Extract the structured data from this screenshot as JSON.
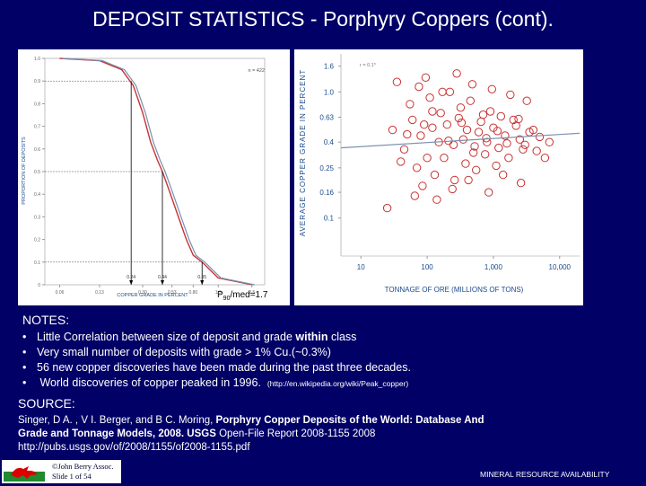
{
  "title": "DEPOSIT STATISTICS - Porphyry Coppers (cont).",
  "left_chart": {
    "ylabel": "PROPORTION OF DEPOSITS",
    "xlabel": "COPPER GRADE IN PERCENT",
    "n_label": "n = 422",
    "y_ticks": [
      "1.0",
      "0.9",
      "0.8",
      "0.7",
      "0.6",
      "0.5",
      "0.4",
      "0.3",
      "0.2",
      "0.1",
      "0"
    ],
    "x_ticks": [
      "0.06",
      "0.13",
      "0.30",
      "0.53",
      "0.80",
      "1.3",
      "2.5"
    ],
    "marker_labels": [
      "0.24",
      "0.44",
      "0.95"
    ],
    "annotation": "P90/med=1.7",
    "annotation_main": "P",
    "annotation_sub": "90",
    "annotation_rest": "/med=1.7"
  },
  "right_chart": {
    "ylabel": "AVERAGE COPPER GRADE IN PERCENT",
    "xlabel": "TONNAGE OF ORE (MILLIONS OF TONS)",
    "r_label": "r = 0.1*",
    "y_ticks": [
      "1.6",
      "1.0",
      "0.63",
      "0.4",
      "0.25",
      "0.16",
      "0.1"
    ],
    "x_ticks": [
      "10",
      "100",
      "1,000",
      "10,000"
    ]
  },
  "chart_data": [
    {
      "type": "line",
      "title": "",
      "xlabel": "COPPER GRADE IN PERCENT",
      "ylabel": "PROPORTION OF DEPOSITS",
      "x_scale": "log",
      "ylim": [
        0,
        1
      ],
      "n": 422,
      "series": [
        {
          "x": [
            0.06,
            0.13,
            0.2,
            0.25,
            0.3,
            0.35,
            0.4,
            0.44,
            0.5,
            0.6,
            0.7,
            0.8,
            0.95,
            1.3,
            2.5
          ],
          "values": [
            1.0,
            0.99,
            0.95,
            0.88,
            0.76,
            0.63,
            0.55,
            0.5,
            0.42,
            0.3,
            0.2,
            0.13,
            0.1,
            0.03,
            0
          ]
        }
      ],
      "markers": [
        0.24,
        0.44,
        0.95
      ]
    },
    {
      "type": "scatter",
      "title": "",
      "xlabel": "TONNAGE OF ORE (MILLIONS OF TONS)",
      "ylabel": "AVERAGE COPPER GRADE IN PERCENT",
      "x_scale": "log",
      "y_scale": "log",
      "xlim": [
        5,
        20000
      ],
      "ylim": [
        0.05,
        2
      ],
      "r": "0.1*",
      "trend": {
        "x": [
          5,
          20000
        ],
        "values": [
          0.36,
          0.47
        ]
      },
      "series": [
        {
          "x": [
            30,
            45,
            60,
            80,
            100,
            120,
            150,
            200,
            250,
            300,
            350,
            400,
            500,
            600,
            700,
            800,
            1000,
            1200,
            1500,
            2000,
            2500,
            3000,
            4000,
            5000,
            7000,
            40,
            55,
            70,
            90,
            110,
            130,
            160,
            180,
            220,
            260,
            320,
            380,
            450,
            550,
            650,
            750,
            900,
            1100,
            1300,
            1700,
            2200,
            2800,
            3500,
            25,
            65,
            85,
            140,
            240,
            420,
            850,
            1400,
            2600,
            6000,
            35,
            75,
            95,
            170,
            280,
            480,
            950,
            1800,
            3200,
            50,
            120,
            210,
            330,
            520,
            780,
            1150,
            1600,
            2400,
            4500
          ],
          "values": [
            0.5,
            0.35,
            0.6,
            0.45,
            0.3,
            0.7,
            0.4,
            0.55,
            0.38,
            0.62,
            0.42,
            0.5,
            0.33,
            0.48,
            0.66,
            0.4,
            0.52,
            0.36,
            0.45,
            0.6,
            0.42,
            0.38,
            0.5,
            0.44,
            0.4,
            0.28,
            0.8,
            0.25,
            0.55,
            0.9,
            0.22,
            0.68,
            0.3,
            1.0,
            0.2,
            0.75,
            0.27,
            0.85,
            0.24,
            0.58,
            0.32,
            0.7,
            0.26,
            0.64,
            0.3,
            0.54,
            0.35,
            0.48,
            0.12,
            0.15,
            0.18,
            0.14,
            0.17,
            0.2,
            0.16,
            0.22,
            0.19,
            0.3,
            1.2,
            1.1,
            1.3,
            1.0,
            1.4,
            1.15,
            1.05,
            0.95,
            0.85,
            0.46,
            0.52,
            0.41,
            0.57,
            0.37,
            0.43,
            0.49,
            0.39,
            0.61,
            0.34
          ]
        }
      ]
    }
  ],
  "notes": {
    "heading": "NOTES:",
    "items": [
      {
        "bullet": "•",
        "text": "Little Correlation between size of deposit and grade ",
        "bold": "within",
        "text2": " class",
        "small": ""
      },
      {
        "bullet": "•",
        "text": "Very small number of deposits with grade > 1% Cu.(~0.3%)",
        "bold": "",
        "text2": "",
        "small": ""
      },
      {
        "bullet": "•",
        "text": "56 new copper discoveries have been made during the past three decades.",
        "bold": "",
        "text2": "",
        "small": ""
      },
      {
        "bullet": "•",
        "text": " World discoveries of copper peaked in 1996.",
        "bold": "",
        "text2": "",
        "small": "(http://en.wikipedia.org/wiki/Peak_copper)"
      }
    ]
  },
  "source": {
    "heading": "SOURCE:",
    "line1_a": "Singer, D A. , V I. Berger, and B C. Moring, ",
    "line1_b": "Porphyry Copper Deposits of the World: Database And",
    "line2_a": "Grade and Tonnage Models, 2008. USGS",
    "line2_b": " Open-File Report 2008-1155 2008",
    "line3": "http://pubs.usgs.gov/of/2008/1155/of2008-1155.pdf"
  },
  "footer": {
    "copyright_line1": "©John Berry Assoc.",
    "copyright_line2": "Slide 1 of 54",
    "right": "MINERAL RESOURCE AVAILABILITY"
  },
  "colors": {
    "background": "#000066",
    "flag": "#cc0000",
    "series": "#c83232",
    "axis_accent": "#1a4a8c"
  }
}
